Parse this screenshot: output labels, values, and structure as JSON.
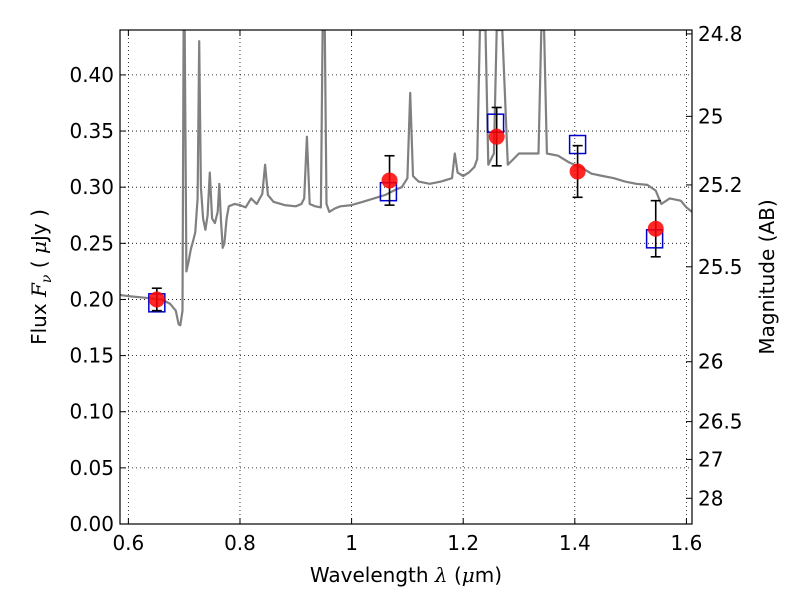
{
  "chart_data": {
    "type": "scatter",
    "xlabel": "Wavelength",
    "xlabel_symbol": "λ",
    "xlabel_unit_open": " (",
    "xlabel_unit_mu": "μ",
    "xlabel_unit_rest": "m)",
    "ylabel_prefix": "Flux",
    "ylabel_symbol": "F",
    "ylabel_subscript": "ν",
    "ylabel_unit_open": "( ",
    "ylabel_unit_mu": "μ",
    "ylabel_unit_rest": "Jy )",
    "y2label": "Magnitude (AB)",
    "xlim": [
      0.585,
      1.61
    ],
    "ylim": [
      0.0,
      0.44
    ],
    "grid": true,
    "x_ticks": [
      {
        "value": 0.6,
        "label": "0.6"
      },
      {
        "value": 0.8,
        "label": "0.8"
      },
      {
        "value": 1.0,
        "label": "1"
      },
      {
        "value": 1.2,
        "label": "1.2"
      },
      {
        "value": 1.4,
        "label": "1.4"
      },
      {
        "value": 1.6,
        "label": "1.6"
      }
    ],
    "y_ticks": [
      {
        "value": 0.0,
        "label": "0.00"
      },
      {
        "value": 0.05,
        "label": "0.05"
      },
      {
        "value": 0.1,
        "label": "0.10"
      },
      {
        "value": 0.15,
        "label": "0.15"
      },
      {
        "value": 0.2,
        "label": "0.20"
      },
      {
        "value": 0.25,
        "label": "0.25"
      },
      {
        "value": 0.3,
        "label": "0.30"
      },
      {
        "value": 0.35,
        "label": "0.35"
      },
      {
        "value": 0.4,
        "label": "0.40"
      }
    ],
    "y2_ticks": [
      {
        "value": 24.8,
        "label": "24.8"
      },
      {
        "value": 25.0,
        "label": "25"
      },
      {
        "value": 25.2,
        "label": "25.2"
      },
      {
        "value": 25.5,
        "label": "25.5"
      },
      {
        "value": 26.0,
        "label": "26"
      },
      {
        "value": 26.5,
        "label": "26.5"
      },
      {
        "value": 27.0,
        "label": "27"
      },
      {
        "value": 28.0,
        "label": "28"
      }
    ],
    "series": [
      {
        "type": "line",
        "color": "#808080",
        "points": [
          [
            0.585,
            0.204
          ],
          [
            0.6,
            0.203
          ],
          [
            0.62,
            0.202
          ],
          [
            0.64,
            0.201
          ],
          [
            0.66,
            0.2
          ],
          [
            0.675,
            0.196
          ],
          [
            0.685,
            0.19
          ],
          [
            0.69,
            0.178
          ],
          [
            0.693,
            0.177
          ],
          [
            0.697,
            0.19
          ],
          [
            0.699,
            0.44
          ],
          [
            0.701,
            0.44
          ],
          [
            0.704,
            0.225
          ],
          [
            0.708,
            0.234
          ],
          [
            0.712,
            0.245
          ],
          [
            0.716,
            0.252
          ],
          [
            0.72,
            0.26
          ],
          [
            0.724,
            0.29
          ],
          [
            0.727,
            0.43
          ],
          [
            0.73,
            0.3
          ],
          [
            0.734,
            0.272
          ],
          [
            0.738,
            0.262
          ],
          [
            0.742,
            0.275
          ],
          [
            0.746,
            0.313
          ],
          [
            0.75,
            0.272
          ],
          [
            0.755,
            0.268
          ],
          [
            0.76,
            0.278
          ],
          [
            0.763,
            0.303
          ],
          [
            0.766,
            0.27
          ],
          [
            0.769,
            0.246
          ],
          [
            0.772,
            0.25
          ],
          [
            0.776,
            0.272
          ],
          [
            0.78,
            0.283
          ],
          [
            0.79,
            0.285
          ],
          [
            0.8,
            0.284
          ],
          [
            0.81,
            0.282
          ],
          [
            0.82,
            0.29
          ],
          [
            0.83,
            0.285
          ],
          [
            0.84,
            0.294
          ],
          [
            0.845,
            0.32
          ],
          [
            0.85,
            0.293
          ],
          [
            0.86,
            0.287
          ],
          [
            0.88,
            0.284
          ],
          [
            0.9,
            0.283
          ],
          [
            0.91,
            0.285
          ],
          [
            0.915,
            0.29
          ],
          [
            0.92,
            0.345
          ],
          [
            0.925,
            0.285
          ],
          [
            0.935,
            0.283
          ],
          [
            0.945,
            0.282
          ],
          [
            0.948,
            0.44
          ],
          [
            0.952,
            0.44
          ],
          [
            0.955,
            0.285
          ],
          [
            0.96,
            0.278
          ],
          [
            0.97,
            0.281
          ],
          [
            0.98,
            0.283
          ],
          [
            1.0,
            0.284
          ],
          [
            1.02,
            0.287
          ],
          [
            1.04,
            0.29
          ],
          [
            1.06,
            0.293
          ],
          [
            1.08,
            0.298
          ],
          [
            1.09,
            0.3
          ],
          [
            1.1,
            0.308
          ],
          [
            1.105,
            0.384
          ],
          [
            1.11,
            0.31
          ],
          [
            1.12,
            0.305
          ],
          [
            1.14,
            0.303
          ],
          [
            1.16,
            0.305
          ],
          [
            1.18,
            0.308
          ],
          [
            1.185,
            0.33
          ],
          [
            1.19,
            0.313
          ],
          [
            1.2,
            0.31
          ],
          [
            1.21,
            0.313
          ],
          [
            1.22,
            0.318
          ],
          [
            1.225,
            0.325
          ],
          [
            1.23,
            0.44
          ],
          [
            1.24,
            0.44
          ],
          [
            1.245,
            0.32
          ],
          [
            1.255,
            0.33
          ],
          [
            1.26,
            0.44
          ],
          [
            1.27,
            0.44
          ],
          [
            1.28,
            0.32
          ],
          [
            1.3,
            0.33
          ],
          [
            1.32,
            0.33
          ],
          [
            1.335,
            0.33
          ],
          [
            1.34,
            0.44
          ],
          [
            1.345,
            0.44
          ],
          [
            1.35,
            0.33
          ],
          [
            1.37,
            0.328
          ],
          [
            1.39,
            0.322
          ],
          [
            1.41,
            0.318
          ],
          [
            1.43,
            0.312
          ],
          [
            1.45,
            0.31
          ],
          [
            1.47,
            0.308
          ],
          [
            1.49,
            0.305
          ],
          [
            1.51,
            0.303
          ],
          [
            1.53,
            0.302
          ],
          [
            1.545,
            0.297
          ],
          [
            1.555,
            0.285
          ],
          [
            1.57,
            0.29
          ],
          [
            1.59,
            0.288
          ],
          [
            1.6,
            0.282
          ],
          [
            1.61,
            0.278
          ]
        ]
      },
      {
        "type": "squares",
        "color": "#0000cc",
        "points": [
          [
            0.651,
            0.197
          ],
          [
            1.066,
            0.296
          ],
          [
            1.258,
            0.357
          ],
          [
            1.405,
            0.338
          ],
          [
            1.543,
            0.254
          ]
        ]
      },
      {
        "type": "points_with_errorbars",
        "color": "#ff0000",
        "points": [
          {
            "x": 0.651,
            "y": 0.2,
            "err": 0.01
          },
          {
            "x": 1.068,
            "y": 0.306,
            "err": 0.022
          },
          {
            "x": 1.26,
            "y": 0.345,
            "err": 0.026
          },
          {
            "x": 1.405,
            "y": 0.314,
            "err": 0.023
          },
          {
            "x": 1.545,
            "y": 0.263,
            "err": 0.025
          }
        ]
      }
    ]
  }
}
